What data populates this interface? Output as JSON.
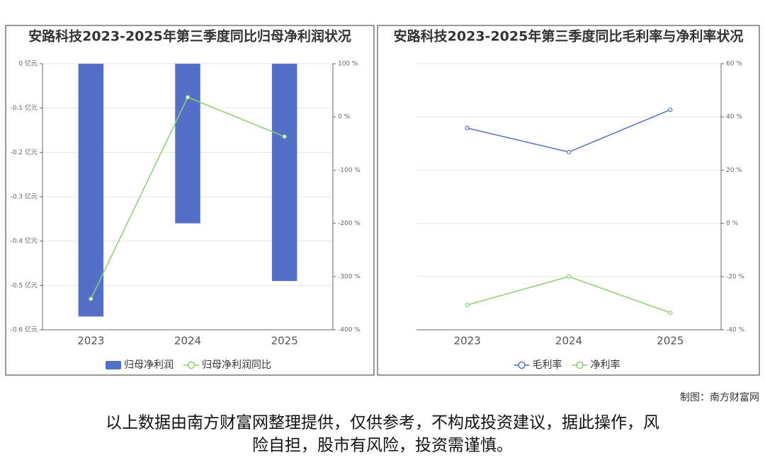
{
  "charts": [
    {
      "type": "bar",
      "title": "安路科技2023-2025年第三季度同比归母净利润状况",
      "categories": [
        "2023",
        "2024",
        "2025"
      ],
      "series": [
        {
          "name": "归母净利润",
          "type": "bar",
          "color": "#5470c6",
          "values": [
            -0.57,
            -0.36,
            -0.49
          ]
        },
        {
          "name": "归母净利润同比",
          "type": "line",
          "color": "#91cc75",
          "axis": "y2",
          "values": [
            -342,
            37,
            -37
          ]
        }
      ],
      "ylim": [
        -0.6,
        0
      ],
      "yticks": [
        {
          "value": 0,
          "label": "0 亿元"
        },
        {
          "value": -0.1,
          "label": "-0.1 亿元"
        },
        {
          "value": -0.2,
          "label": "-0.2 亿元"
        },
        {
          "value": -0.3,
          "label": "-0.3 亿元"
        },
        {
          "value": -0.4,
          "label": "-0.4 亿元"
        },
        {
          "value": -0.5,
          "label": "-0.5 亿元"
        },
        {
          "value": -0.6,
          "label": "-0.6 亿元"
        }
      ],
      "y2lim": [
        -400,
        100
      ],
      "y2ticks": [
        {
          "value": 100,
          "label": "100 %"
        },
        {
          "value": 0,
          "label": "0 %"
        },
        {
          "value": -100,
          "label": "-100 %"
        },
        {
          "value": -200,
          "label": "-200 %"
        },
        {
          "value": -300,
          "label": "-300 %"
        },
        {
          "value": -400,
          "label": "-400 %"
        }
      ],
      "y_axis_position": "left",
      "grid": true,
      "legend": "bottom"
    },
    {
      "type": "line",
      "title": "安路科技2023-2025年第三季度同比毛利率与净利率状况",
      "categories": [
        "2023",
        "2024",
        "2025"
      ],
      "series": [
        {
          "name": "毛利率",
          "type": "line",
          "color": "#5470c6",
          "values": [
            35.8,
            26.8,
            42.7
          ]
        },
        {
          "name": "净利率",
          "type": "line",
          "color": "#91cc75",
          "values": [
            -30.7,
            -20,
            -33.6
          ]
        }
      ],
      "ylim": [
        -40,
        60
      ],
      "yticks": [
        {
          "value": 60,
          "label": "60 %"
        },
        {
          "value": 40,
          "label": "40 %"
        },
        {
          "value": 20,
          "label": "20 %"
        },
        {
          "value": 0,
          "label": "0 %"
        },
        {
          "value": -20,
          "label": "-20 %"
        },
        {
          "value": -40,
          "label": "-40 %"
        }
      ],
      "y_axis_position": "right",
      "grid": true,
      "legend": "bottom"
    }
  ],
  "credit": "制图：南方财富网",
  "disclaimer": [
    "以上数据由南方财富网整理提供，仅供参考，不构成投资建议，据此操作，风",
    "险自担，股市有风险，投资需谨慎。"
  ]
}
